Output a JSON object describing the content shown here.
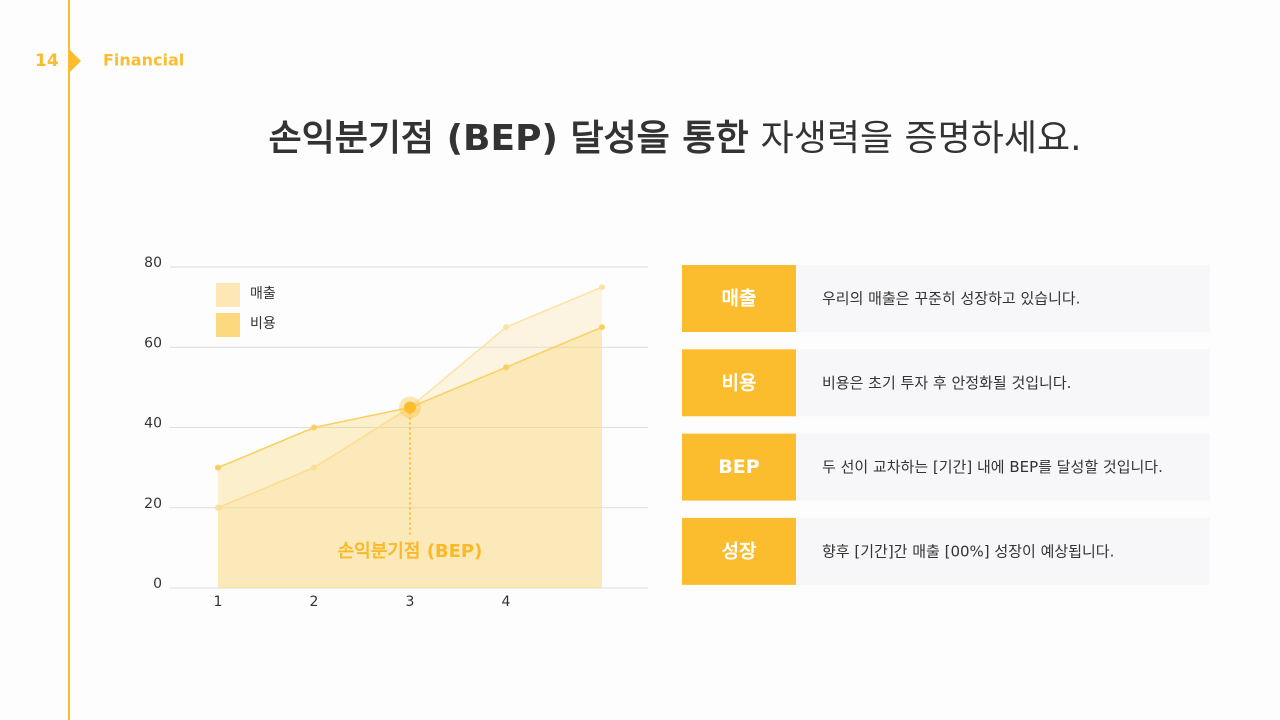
{
  "header": {
    "page": "14",
    "section": "Financial"
  },
  "title": {
    "bold": "손익분기점 (BEP) 달성을 통한",
    "regular": "자생력을 증명하세요."
  },
  "chart_data": {
    "type": "area",
    "categories": [
      "1",
      "2",
      "3",
      "4",
      null
    ],
    "series": [
      {
        "name": "매출",
        "color": "#fde2a2",
        "values": [
          20,
          30,
          45,
          65,
          75
        ]
      },
      {
        "name": "비용",
        "color": "#fbcf5e",
        "values": [
          30,
          40,
          45,
          55,
          65
        ]
      }
    ],
    "ylim": [
      0,
      80
    ],
    "yticks": [
      0,
      20,
      40,
      60,
      80
    ],
    "grid": true,
    "legend": "top-left",
    "annotation": "손익분기점 (BEP)"
  },
  "items": [
    {
      "label": "매출",
      "text": "우리의 매출은 꾸준히 성장하고 있습니다."
    },
    {
      "label": "비용",
      "text": "비용은 초기 투자 후 안정화될 것입니다."
    },
    {
      "label": "BEP",
      "text": "두 선이 교차하는 [기간] 내에 BEP를 달성할 것입니다."
    },
    {
      "label": "성장",
      "text": "향후 [기간]간 매출 [00%] 성장이 예상됩니다."
    }
  ]
}
